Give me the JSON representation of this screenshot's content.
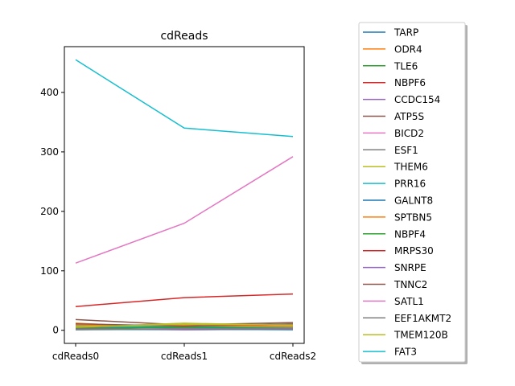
{
  "chart_data": {
    "type": "line",
    "title": "cdReads",
    "xlabel": "",
    "ylabel": "",
    "categories": [
      "cdReads0",
      "cdReads1",
      "cdReads2"
    ],
    "ylim": [
      -22,
      477
    ],
    "yticks": [
      0,
      100,
      200,
      300,
      400
    ],
    "grid": false,
    "legend_placement": "outside-right",
    "series": [
      {
        "name": "TARP",
        "color": "#1f77b4",
        "values": [
          2,
          1,
          2
        ]
      },
      {
        "name": "ODR4",
        "color": "#ff7f0e",
        "values": [
          12,
          3,
          5
        ]
      },
      {
        "name": "TLE6",
        "color": "#2ca02c",
        "values": [
          6,
          4,
          5
        ]
      },
      {
        "name": "NBPF6",
        "color": "#d62728",
        "values": [
          10,
          6,
          9
        ]
      },
      {
        "name": "CCDC154",
        "color": "#9467bd",
        "values": [
          3,
          1,
          2
        ]
      },
      {
        "name": "ATP5S",
        "color": "#8c564b",
        "values": [
          18,
          9,
          13
        ]
      },
      {
        "name": "BICD2",
        "color": "#e377c2",
        "values": [
          8,
          5,
          7
        ]
      },
      {
        "name": "ESF1",
        "color": "#7f7f7f",
        "values": [
          4,
          7,
          11
        ]
      },
      {
        "name": "THEM6",
        "color": "#bcbd22",
        "values": [
          5,
          12,
          8
        ]
      },
      {
        "name": "PRR16",
        "color": "#17becf",
        "values": [
          7,
          6,
          4
        ]
      },
      {
        "name": "GALNT8",
        "color": "#1f77b4",
        "values": [
          1,
          2,
          1
        ]
      },
      {
        "name": "SPTBN5",
        "color": "#ff7f0e",
        "values": [
          9,
          8,
          6
        ]
      },
      {
        "name": "NBPF4",
        "color": "#2ca02c",
        "values": [
          3,
          5,
          3
        ]
      },
      {
        "name": "MRPS30",
        "color": "#d62728",
        "values": [
          40,
          55,
          61
        ]
      },
      {
        "name": "SNRPE",
        "color": "#9467bd",
        "values": [
          2,
          2,
          3
        ]
      },
      {
        "name": "TNNC2",
        "color": "#8c564b",
        "values": [
          11,
          7,
          10
        ]
      },
      {
        "name": "SATL1",
        "color": "#e377c2",
        "values": [
          113,
          180,
          292
        ]
      },
      {
        "name": "EEF1AKMT2",
        "color": "#7f7f7f",
        "values": [
          1,
          3,
          2
        ]
      },
      {
        "name": "TMEM120B",
        "color": "#bcbd22",
        "values": [
          6,
          10,
          9
        ]
      },
      {
        "name": "FAT3",
        "color": "#17becf",
        "values": [
          455,
          340,
          326
        ]
      }
    ]
  }
}
